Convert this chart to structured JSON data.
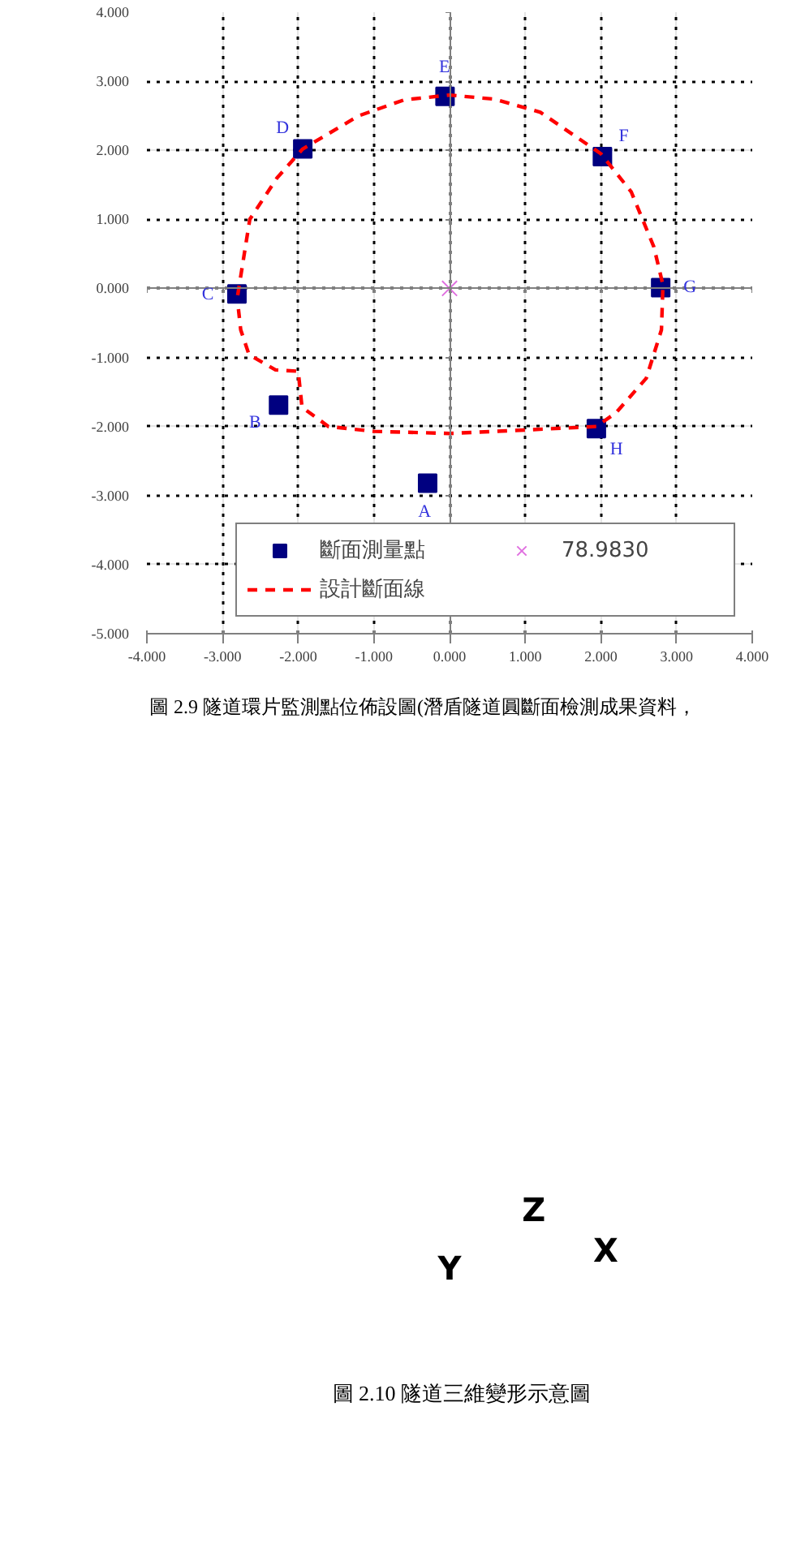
{
  "chart_data": {
    "type": "scatter",
    "xlim": [
      -4,
      4
    ],
    "ylim": [
      -5,
      4
    ],
    "xticks": [
      {
        "value": -4,
        "label": "-4.000"
      },
      {
        "value": -3,
        "label": "-3.000"
      },
      {
        "value": -2,
        "label": "-2.000"
      },
      {
        "value": -1,
        "label": "-1.000"
      },
      {
        "value": 0,
        "label": "0.000"
      },
      {
        "value": 1,
        "label": "1.000"
      },
      {
        "value": 2,
        "label": "2.000"
      },
      {
        "value": 3,
        "label": "3.000"
      },
      {
        "value": 4,
        "label": "4.000"
      }
    ],
    "yticks": [
      {
        "value": -5,
        "label": "-5.000"
      },
      {
        "value": -4,
        "label": "-4.000"
      },
      {
        "value": -3,
        "label": "-3.000"
      },
      {
        "value": -2,
        "label": "-2.000"
      },
      {
        "value": -1,
        "label": "-1.000"
      },
      {
        "value": 0,
        "label": "0.000"
      },
      {
        "value": 1,
        "label": "1.000"
      },
      {
        "value": 2,
        "label": "2.000"
      },
      {
        "value": 3,
        "label": "3.000"
      },
      {
        "value": 4,
        "label": "4.000"
      }
    ],
    "grid": true,
    "legend": "bottom right",
    "series": [
      {
        "name": "斷面測量點",
        "type": "scatter",
        "marker": "square",
        "color": "#000080",
        "x": [
          -0.29,
          -2.26,
          -2.81,
          -1.94,
          -0.06,
          2.02,
          2.79,
          1.94
        ],
        "values": [
          -2.82,
          -1.69,
          -0.08,
          2.02,
          2.78,
          1.91,
          0.01,
          -2.03
        ],
        "value_labels": [
          "A",
          "B",
          "C",
          "D",
          "E",
          "F",
          "G",
          "H"
        ]
      },
      {
        "name": "設計斷面線",
        "type": "line",
        "line_style": "dashed",
        "marker": "none",
        "color": "#ff0000",
        "x": [
          -2.8,
          -2.64,
          -2.28,
          -1.94,
          -1.2,
          -0.6,
          0,
          0.6,
          1.2,
          2.0,
          2.4,
          2.7,
          2.82,
          2.8,
          2.6,
          2.2,
          1.94,
          1.0,
          0,
          -1.0,
          -1.6,
          -1.95,
          -2.0,
          -2.3,
          -2.65,
          -2.76,
          -2.79
        ],
        "values": [
          -0.1,
          1.0,
          1.6,
          2.02,
          2.5,
          2.73,
          2.8,
          2.74,
          2.55,
          1.95,
          1.4,
          0.6,
          0.05,
          -0.6,
          -1.3,
          -1.8,
          -2.0,
          -2.05,
          -2.1,
          -2.07,
          -2.0,
          -1.72,
          -1.2,
          -1.18,
          -0.96,
          -0.6,
          -0.3
        ]
      },
      {
        "name": "78.9830",
        "type": "scatter",
        "marker": "cross",
        "color": "#e070e0",
        "x": [
          0
        ],
        "values": [
          0
        ]
      }
    ],
    "annotations": [
      "圖 2.9 隧道環片監測點位佈設圖(潛盾隧道圓斷面檢測成果資料，",
      "圖 2.10 隧道三維變形示意圖",
      "X",
      "Y",
      "Z"
    ]
  }
}
